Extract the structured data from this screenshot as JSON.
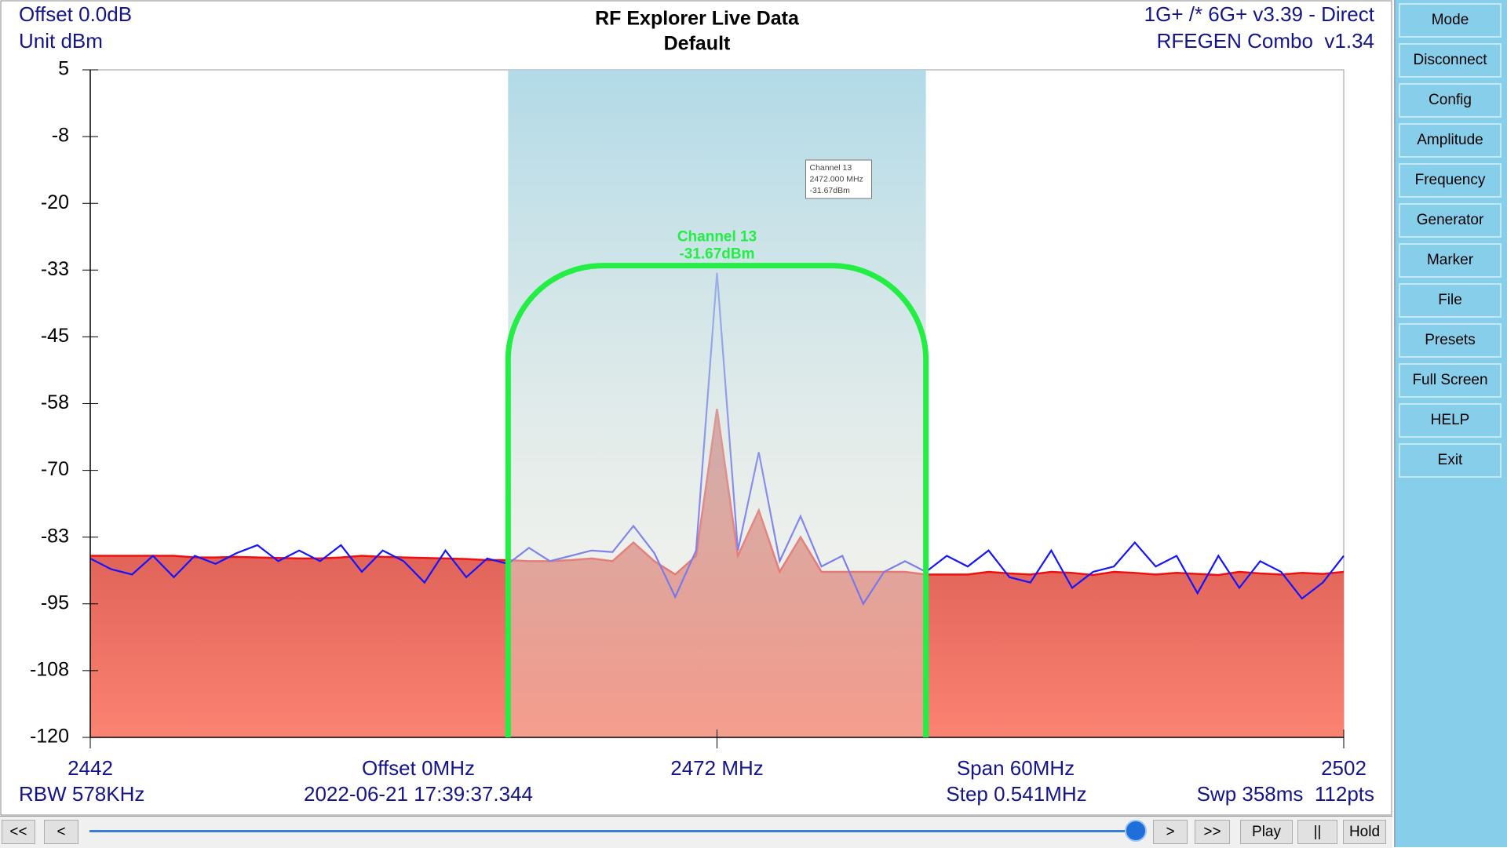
{
  "status": {
    "offset": "Offset 0.0dB",
    "unit": "Unit dBm",
    "device": "1G+ /* 6G+ v3.39 - Direct",
    "generator": "RFEGEN Combo  v1.34"
  },
  "chart_data": {
    "type": "line",
    "title": "RF Explorer Live Data",
    "subtitle": "Default",
    "x": [
      2442,
      2443,
      2444,
      2445,
      2446,
      2447,
      2448,
      2449,
      2450,
      2451,
      2452,
      2453,
      2454,
      2455,
      2456,
      2457,
      2458,
      2459,
      2460,
      2461,
      2462,
      2463,
      2464,
      2465,
      2466,
      2467,
      2468,
      2469,
      2470,
      2471,
      2472,
      2473,
      2474,
      2475,
      2476,
      2477,
      2478,
      2479,
      2480,
      2481,
      2482,
      2483,
      2484,
      2485,
      2486,
      2487,
      2488,
      2489,
      2490,
      2491,
      2492,
      2493,
      2494,
      2495,
      2496,
      2497,
      2498,
      2499,
      2500,
      2501,
      2502
    ],
    "series": [
      {
        "type": "area",
        "color": "#d24a45",
        "values": [
          -86,
          -86,
          -86,
          -86,
          -86,
          -86.3,
          -86.3,
          -86.2,
          -86.3,
          -86.4,
          -86.5,
          -86.5,
          -86.3,
          -86,
          -86.2,
          -86.3,
          -86.4,
          -86.5,
          -86.6,
          -86.8,
          -86.8,
          -87,
          -87,
          -86.8,
          -86.5,
          -87,
          -83.5,
          -87,
          -89.5,
          -86,
          -58.5,
          -86,
          -77.5,
          -89,
          -82.5,
          -89,
          -89,
          -89,
          -89,
          -89,
          -89.5,
          -89.5,
          -89.5,
          -89,
          -89.3,
          -89.5,
          -89,
          -89.2,
          -89.6,
          -89,
          -89.2,
          -89.5,
          -89.2,
          -89.4,
          -89.6,
          -89,
          -89.3,
          -89.5,
          -89.2,
          -89.4,
          -89
        ]
      },
      {
        "type": "line",
        "color": "#1414ff",
        "values": [
          -86.5,
          -88.5,
          -89.5,
          -86,
          -90,
          -86,
          -87.5,
          -85.5,
          -84,
          -87,
          -85,
          -87,
          -84,
          -89,
          -85,
          -87,
          -91,
          -85,
          -90,
          -86.5,
          -87.5,
          -84.5,
          -87,
          -86,
          -85,
          -85.3,
          -80.4,
          -85.5,
          -93.7,
          -85,
          -33,
          -85,
          -66.6,
          -87,
          -78.6,
          -88,
          -86,
          -95,
          -89,
          -87,
          -89,
          -86,
          -88,
          -85,
          -90,
          -91,
          -85,
          -92,
          -89,
          -88,
          -83.5,
          -88,
          -86,
          -93,
          -86,
          -92,
          -87,
          -89,
          -94,
          -91,
          -86
        ]
      }
    ],
    "xlim": [
      2442,
      2502
    ],
    "xticks": [
      2442,
      {
        "value": 2472,
        "label": "2472 MHz"
      },
      2502
    ],
    "ylim": [
      -120,
      5
    ],
    "yticks": [
      5,
      {
        "value": -7.5,
        "label": "-8"
      },
      -20,
      {
        "value": -32.5,
        "label": "-33"
      },
      -45,
      {
        "value": -57.5,
        "label": "-58"
      },
      -70,
      {
        "value": -82.5,
        "label": "-83"
      },
      -95,
      {
        "value": -107.5,
        "label": "-108"
      },
      -120
    ],
    "channel": {
      "name": "Channel 13",
      "x": 2472,
      "range": [
        2462,
        2482
      ],
      "value": -31.67,
      "value_label": "-31.67dBm",
      "color": "#22ee44",
      "tooltip": [
        "Channel 13",
        "2472.000 MHz",
        "-31.67dBm"
      ]
    }
  },
  "footer": {
    "offset": "Offset 0MHz",
    "span": "Span 60MHz",
    "rbw": "RBW 578KHz",
    "timestamp": "2022-06-21 17:39:37.344",
    "step": "Step 0.541MHz",
    "sweep": "Swp 358ms  112pts"
  },
  "menu": [
    "Mode",
    "Disconnect",
    "Config",
    "Amplitude",
    "Frequency",
    "Generator",
    "Marker",
    "File",
    "Presets",
    "Full Screen",
    "HELP",
    "Exit"
  ],
  "controls": [
    "<<",
    "<",
    ">",
    ">>",
    "Play",
    "||",
    "Hold"
  ]
}
